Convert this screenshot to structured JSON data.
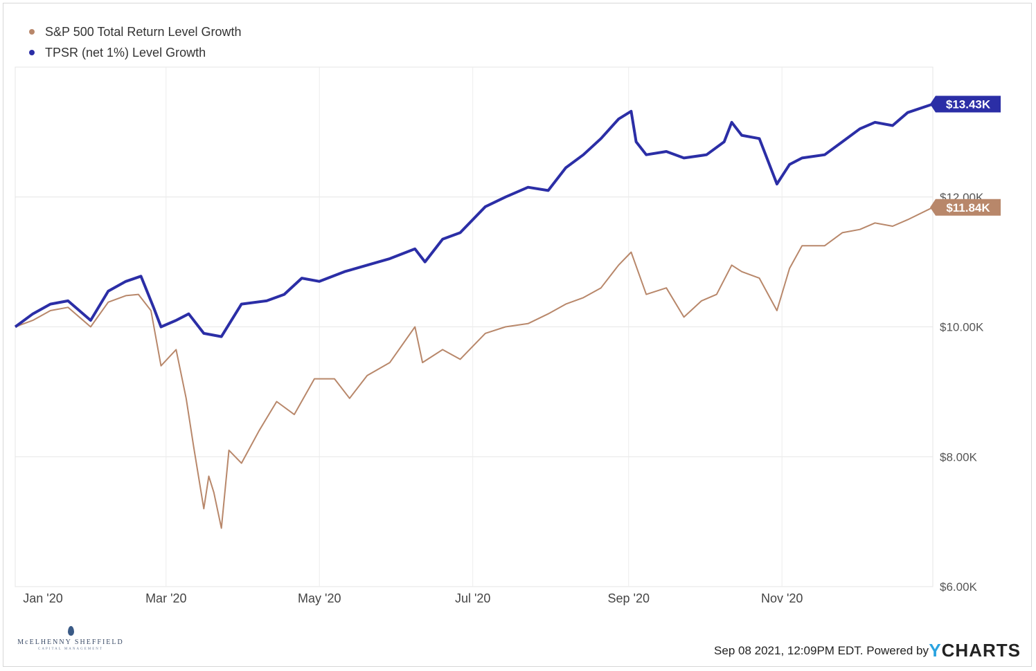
{
  "chart_data": {
    "type": "line",
    "title": "",
    "xlabel": "",
    "ylabel": "",
    "x_ticks": [
      "Jan '20",
      "Mar '20",
      "May '20",
      "Jul '20",
      "Sep '20",
      "Nov '20"
    ],
    "y_ticks": [
      "$6.00K",
      "$8.00K",
      "$10.00K",
      "$12.00K"
    ],
    "ylim": [
      6000,
      14000
    ],
    "xlim": [
      "2020-01-01",
      "2020-12-31"
    ],
    "grid": true,
    "legend": "top-left",
    "series": [
      {
        "name": "S&P 500 Total Return Level Growth",
        "color": "#b8876a",
        "end_label": "$11.84K",
        "points": [
          [
            "2020-01-01",
            10000
          ],
          [
            "2020-01-08",
            10100
          ],
          [
            "2020-01-15",
            10250
          ],
          [
            "2020-01-22",
            10300
          ],
          [
            "2020-01-31",
            10000
          ],
          [
            "2020-02-07",
            10380
          ],
          [
            "2020-02-14",
            10480
          ],
          [
            "2020-02-19",
            10500
          ],
          [
            "2020-02-24",
            10250
          ],
          [
            "2020-02-28",
            9400
          ],
          [
            "2020-03-05",
            9650
          ],
          [
            "2020-03-09",
            8900
          ],
          [
            "2020-03-12",
            8150
          ],
          [
            "2020-03-16",
            7200
          ],
          [
            "2020-03-18",
            7700
          ],
          [
            "2020-03-20",
            7450
          ],
          [
            "2020-03-23",
            6900
          ],
          [
            "2020-03-26",
            8100
          ],
          [
            "2020-03-31",
            7900
          ],
          [
            "2020-04-07",
            8400
          ],
          [
            "2020-04-14",
            8850
          ],
          [
            "2020-04-21",
            8650
          ],
          [
            "2020-04-29",
            9200
          ],
          [
            "2020-05-07",
            9200
          ],
          [
            "2020-05-13",
            8900
          ],
          [
            "2020-05-20",
            9250
          ],
          [
            "2020-05-29",
            9450
          ],
          [
            "2020-06-08",
            10000
          ],
          [
            "2020-06-11",
            9450
          ],
          [
            "2020-06-19",
            9650
          ],
          [
            "2020-06-26",
            9500
          ],
          [
            "2020-07-06",
            9900
          ],
          [
            "2020-07-14",
            10000
          ],
          [
            "2020-07-23",
            10050
          ],
          [
            "2020-07-31",
            10200
          ],
          [
            "2020-08-07",
            10350
          ],
          [
            "2020-08-14",
            10450
          ],
          [
            "2020-08-21",
            10600
          ],
          [
            "2020-08-28",
            10950
          ],
          [
            "2020-09-02",
            11150
          ],
          [
            "2020-09-08",
            10500
          ],
          [
            "2020-09-16",
            10600
          ],
          [
            "2020-09-23",
            10150
          ],
          [
            "2020-09-30",
            10400
          ],
          [
            "2020-10-06",
            10500
          ],
          [
            "2020-10-12",
            10950
          ],
          [
            "2020-10-16",
            10850
          ],
          [
            "2020-10-23",
            10750
          ],
          [
            "2020-10-30",
            10250
          ],
          [
            "2020-11-04",
            10900
          ],
          [
            "2020-11-09",
            11250
          ],
          [
            "2020-11-18",
            11250
          ],
          [
            "2020-11-25",
            11450
          ],
          [
            "2020-12-02",
            11500
          ],
          [
            "2020-12-08",
            11600
          ],
          [
            "2020-12-15",
            11550
          ],
          [
            "2020-12-21",
            11650
          ],
          [
            "2020-12-31",
            11840
          ]
        ]
      },
      {
        "name": "TPSR (net 1%) Level Growth",
        "color": "#2b2ea6",
        "end_label": "$13.43K",
        "points": [
          [
            "2020-01-01",
            10000
          ],
          [
            "2020-01-08",
            10200
          ],
          [
            "2020-01-15",
            10350
          ],
          [
            "2020-01-22",
            10400
          ],
          [
            "2020-01-31",
            10100
          ],
          [
            "2020-02-07",
            10550
          ],
          [
            "2020-02-14",
            10700
          ],
          [
            "2020-02-20",
            10780
          ],
          [
            "2020-02-25",
            10300
          ],
          [
            "2020-02-28",
            10000
          ],
          [
            "2020-03-05",
            10100
          ],
          [
            "2020-03-10",
            10200
          ],
          [
            "2020-03-16",
            9900
          ],
          [
            "2020-03-23",
            9850
          ],
          [
            "2020-03-31",
            10350
          ],
          [
            "2020-04-10",
            10400
          ],
          [
            "2020-04-17",
            10500
          ],
          [
            "2020-04-24",
            10750
          ],
          [
            "2020-05-01",
            10700
          ],
          [
            "2020-05-11",
            10850
          ],
          [
            "2020-05-20",
            10950
          ],
          [
            "2020-05-29",
            11050
          ],
          [
            "2020-06-08",
            11200
          ],
          [
            "2020-06-12",
            11000
          ],
          [
            "2020-06-19",
            11350
          ],
          [
            "2020-06-26",
            11450
          ],
          [
            "2020-07-06",
            11850
          ],
          [
            "2020-07-14",
            12000
          ],
          [
            "2020-07-23",
            12150
          ],
          [
            "2020-07-31",
            12100
          ],
          [
            "2020-08-07",
            12450
          ],
          [
            "2020-08-14",
            12650
          ],
          [
            "2020-08-21",
            12900
          ],
          [
            "2020-08-28",
            13200
          ],
          [
            "2020-09-02",
            13320
          ],
          [
            "2020-09-04",
            12850
          ],
          [
            "2020-09-08",
            12650
          ],
          [
            "2020-09-16",
            12700
          ],
          [
            "2020-09-23",
            12600
          ],
          [
            "2020-10-02",
            12650
          ],
          [
            "2020-10-09",
            12850
          ],
          [
            "2020-10-12",
            13150
          ],
          [
            "2020-10-16",
            12950
          ],
          [
            "2020-10-23",
            12900
          ],
          [
            "2020-10-30",
            12200
          ],
          [
            "2020-11-04",
            12500
          ],
          [
            "2020-11-09",
            12600
          ],
          [
            "2020-11-18",
            12650
          ],
          [
            "2020-11-25",
            12850
          ],
          [
            "2020-12-02",
            13050
          ],
          [
            "2020-12-08",
            13150
          ],
          [
            "2020-12-15",
            13100
          ],
          [
            "2020-12-21",
            13300
          ],
          [
            "2020-12-31",
            13430
          ]
        ]
      }
    ]
  },
  "footer": {
    "timestamp": "Sep 08 2021, 12:09PM EDT. Powered by",
    "logo_y": "Y",
    "logo_rest": "CHARTS",
    "brand_name": "McELHENNY SHEFFIELD",
    "brand_sub": "CAPITAL MANAGEMENT"
  }
}
